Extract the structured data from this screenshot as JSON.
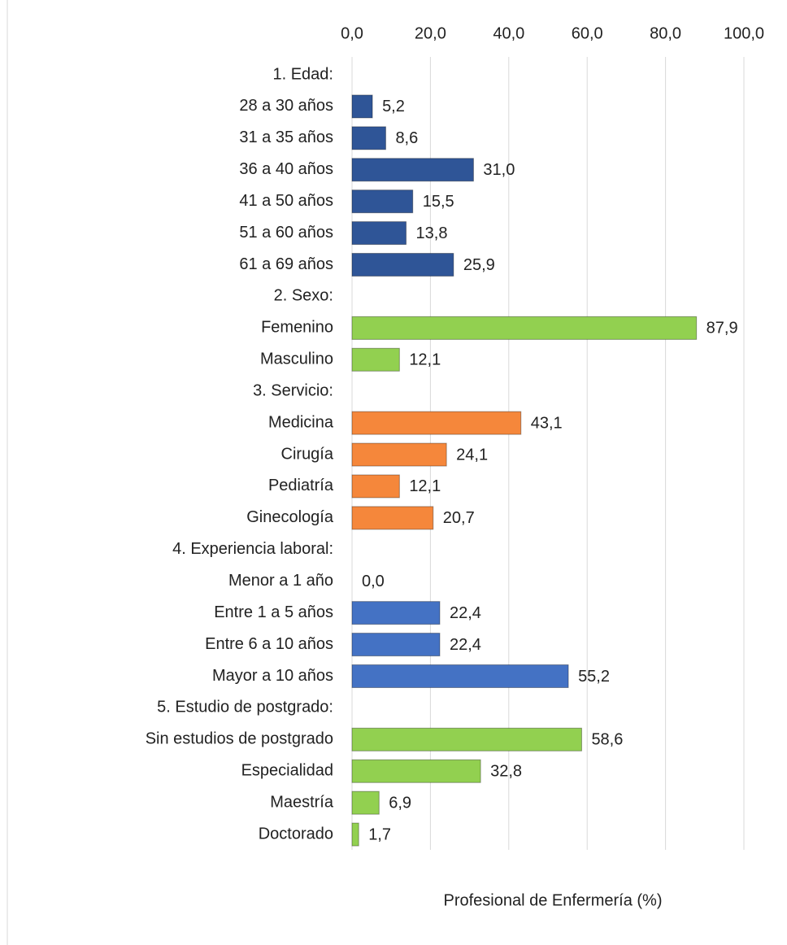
{
  "chart_data": {
    "type": "bar",
    "orientation": "horizontal",
    "x_label": "Profesional de Enfermería (%)",
    "categories": [
      "1. Edad:",
      "28 a 30 años",
      "31 a 35 años",
      "36 a 40 años",
      "41 a 50 años",
      "51 a 60 años",
      "61 a 69 años",
      "2. Sexo:",
      "Femenino",
      "Masculino",
      "3. Servicio:",
      "Medicina",
      "Cirugía",
      "Pediatría",
      "Ginecología",
      "4. Experiencia laboral:",
      "Menor a 1 año",
      "Entre 1 a 5 años",
      "Entre 6 a 10 años",
      "Mayor a 10 años",
      "5. Estudio de postgrado:",
      "Sin estudios de postgrado",
      "Especialidad",
      "Maestría",
      "Doctorado"
    ],
    "values": [
      null,
      5.2,
      8.6,
      31.0,
      15.5,
      13.8,
      25.9,
      null,
      87.9,
      12.1,
      null,
      43.1,
      24.1,
      12.1,
      20.7,
      null,
      0.0,
      22.4,
      22.4,
      55.2,
      null,
      58.6,
      32.8,
      6.9,
      1.7
    ],
    "value_labels": [
      null,
      "5,2",
      "8,6",
      "31,0",
      "15,5",
      "13,8",
      "25,9",
      null,
      "87,9",
      "12,1",
      null,
      "43,1",
      "24,1",
      "12,1",
      "20,7",
      null,
      "0,0",
      "22,4",
      "22,4",
      "55,2",
      null,
      "58,6",
      "32,8",
      "6,9",
      "1,7"
    ],
    "colors": [
      null,
      "#2f5597",
      "#2f5597",
      "#2f5597",
      "#2f5597",
      "#2f5597",
      "#2f5597",
      null,
      "#92d050",
      "#92d050",
      null,
      "#f5873b",
      "#f5873b",
      "#f5873b",
      "#f5873b",
      null,
      "#4472c4",
      "#4472c4",
      "#4472c4",
      "#4472c4",
      null,
      "#92d050",
      "#92d050",
      "#92d050",
      "#92d050"
    ],
    "xlim": [
      0,
      100
    ],
    "xticks": [
      {
        "value": 0,
        "label": "0,0"
      },
      {
        "value": 20,
        "label": "20,0"
      },
      {
        "value": 40,
        "label": "40,0"
      },
      {
        "value": 60,
        "label": "60,0"
      },
      {
        "value": 80,
        "label": "80,0"
      },
      {
        "value": 100,
        "label": "100,0"
      }
    ],
    "grid": true
  }
}
